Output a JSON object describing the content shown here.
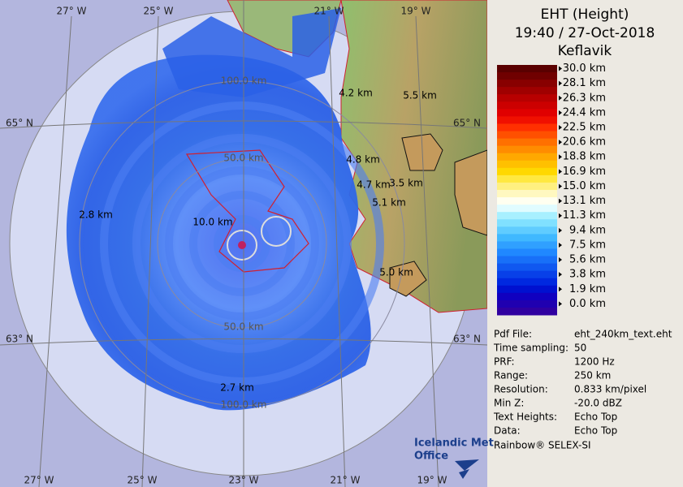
{
  "header": {
    "title": "EHT (Height)",
    "time": "19:40 / 27-Oct-2018",
    "site": "Keflavik"
  },
  "graticule": {
    "top": [
      "27° W",
      "25° W",
      "21° W",
      "19° W"
    ],
    "bottom": [
      "27° W",
      "25° W",
      "23° W",
      "21° W",
      "19° W"
    ],
    "left": [
      "65° N",
      "63° N"
    ],
    "right": [
      "65° N",
      "63° N"
    ]
  },
  "range_rings": [
    "100.0 km",
    "50.0 km",
    "50.0 km",
    "100.0 km"
  ],
  "echo_labels": [
    "4.2 km",
    "5.5 km",
    "4.8 km",
    "3.5 km",
    "4.7 km",
    "5.1 km",
    "2.8 km",
    "10.0 km",
    "5.0 km",
    "2.7 km"
  ],
  "legend": [
    {
      "label": "30.0 km",
      "colors": [
        "#5a0000",
        "#700000"
      ]
    },
    {
      "label": "28.1 km",
      "colors": [
        "#880000",
        "#a00000"
      ]
    },
    {
      "label": "26.3 km",
      "colors": [
        "#b80000",
        "#cc0000"
      ]
    },
    {
      "label": "24.4 km",
      "colors": [
        "#e00000",
        "#f01000"
      ]
    },
    {
      "label": "22.5 km",
      "colors": [
        "#ff3000",
        "#ff5000"
      ]
    },
    {
      "label": "20.6 km",
      "colors": [
        "#ff7000",
        "#ff8c00"
      ]
    },
    {
      "label": "18.8 km",
      "colors": [
        "#ffa800",
        "#ffc000"
      ]
    },
    {
      "label": "16.9 km",
      "colors": [
        "#ffd800",
        "#ffe840"
      ]
    },
    {
      "label": "15.0 km",
      "colors": [
        "#fff080",
        "#fff8c0"
      ]
    },
    {
      "label": "13.1 km",
      "colors": [
        "#fffff0",
        "#e0fcff"
      ]
    },
    {
      "label": "11.3 km",
      "colors": [
        "#a8f0ff",
        "#80e0ff"
      ]
    },
    {
      "label": "9.4 km",
      "colors": [
        "#60ccff",
        "#40b8ff"
      ]
    },
    {
      "label": "7.5 km",
      "colors": [
        "#30a0ff",
        "#2088ff"
      ]
    },
    {
      "label": "5.6 km",
      "colors": [
        "#1870f8",
        "#1058f0"
      ]
    },
    {
      "label": "3.8 km",
      "colors": [
        "#0840e8",
        "#0028e0"
      ]
    },
    {
      "label": "1.9 km",
      "colors": [
        "#0010d0",
        "#1000c0"
      ]
    },
    {
      "label": "0.0 km",
      "colors": [
        "#2000b0",
        "#3000a0"
      ]
    }
  ],
  "info": [
    [
      "Pdf File:",
      "eht_240km_text.eht"
    ],
    [
      "Time sampling:",
      "50"
    ],
    [
      "PRF:",
      "1200 Hz"
    ],
    [
      "Range:",
      "250 km"
    ],
    [
      "Resolution:",
      "0.833 km/pixel"
    ],
    [
      "Min Z:",
      "-20.0 dBZ"
    ],
    [
      "Text Heights:",
      "Echo Top"
    ],
    [
      "Data:",
      "Echo Top"
    ]
  ],
  "footer": "Rainbow® SELEX-SI",
  "logo": [
    "Icelandic Met",
    "Office"
  ]
}
